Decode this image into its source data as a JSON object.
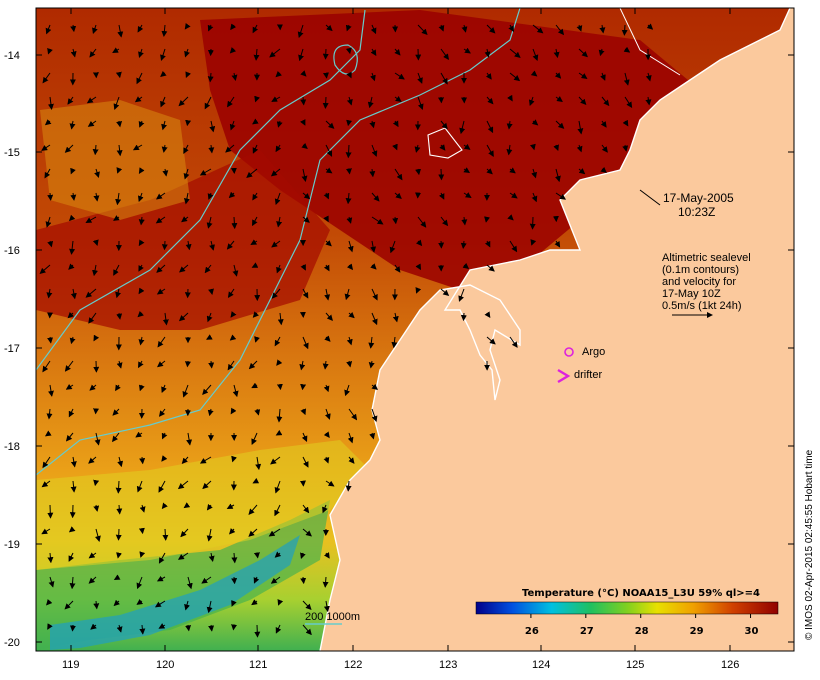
{
  "map": {
    "lat_ticks": [
      "-14",
      "-15",
      "-16",
      "-17",
      "-18",
      "-19",
      "-20"
    ],
    "lon_ticks": [
      "119",
      "120",
      "121",
      "122",
      "123",
      "124",
      "125",
      "126"
    ]
  },
  "annotations": {
    "date": "17-May-2005",
    "time": "10:23Z",
    "altimetry": [
      "Altimetric sealevel",
      "(0.1m contours)",
      "and velocity for",
      "17-May 10Z",
      "0.5m/s (1kt 24h)"
    ],
    "argo_label": "Argo",
    "drifter_label": "drifter",
    "isobath_label": "200  1000m"
  },
  "colorbar": {
    "title": "Temperature (°C) NOAA15_L3U 59% ql>=4",
    "ticks": [
      "26",
      "27",
      "28",
      "29",
      "30"
    ],
    "range": [
      25,
      30.5
    ]
  },
  "credit": "© IMOS 02-Apr-2015 02:45:55 Hobart time",
  "colors": {
    "land": "#fbc99d",
    "contour": "#66cccc",
    "argo": "#dd22dd",
    "warm": "#a00000",
    "cold": "#1040d0"
  }
}
